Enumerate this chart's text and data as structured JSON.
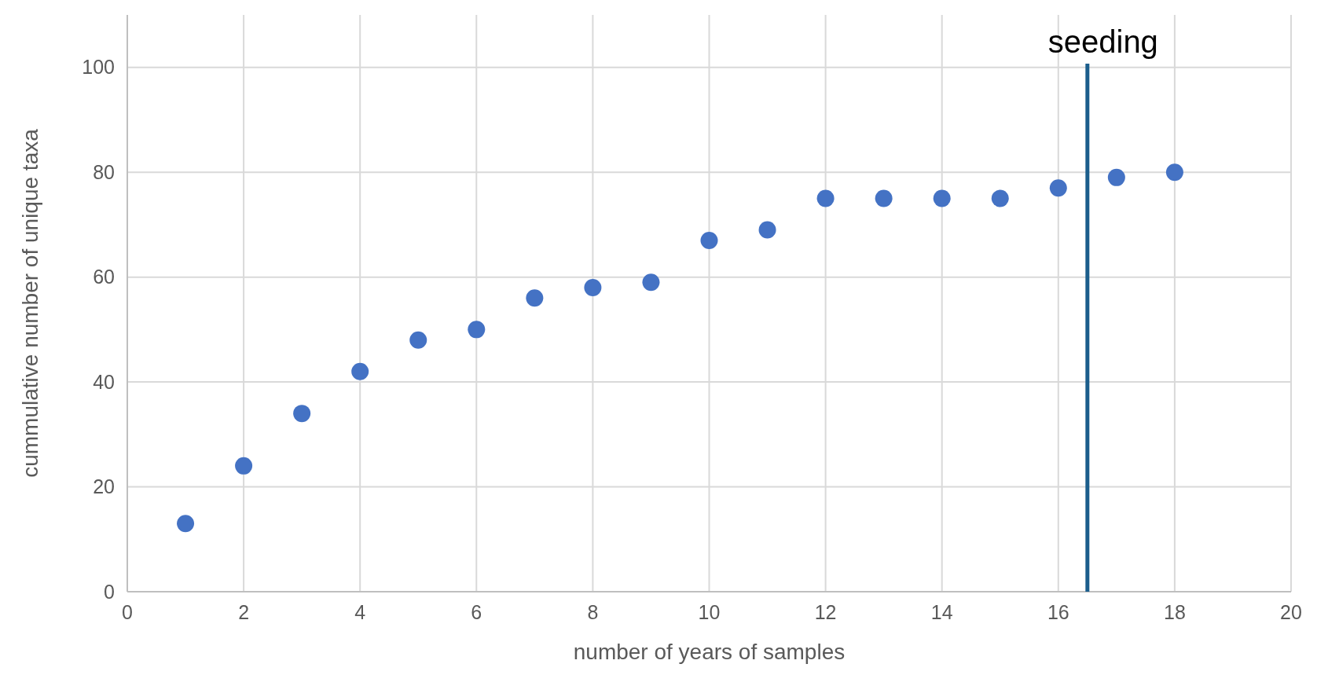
{
  "chart_data": {
    "type": "scatter",
    "xlabel": "number of years of samples",
    "ylabel": "cummulative number of unique taxa",
    "x": [
      1,
      2,
      3,
      4,
      5,
      6,
      7,
      8,
      9,
      10,
      11,
      12,
      13,
      14,
      15,
      16,
      17,
      18
    ],
    "series": [
      {
        "color": "#4472c4",
        "values": [
          13,
          24,
          34,
          42,
          48,
          50,
          56,
          58,
          59,
          67,
          69,
          75,
          75,
          75,
          75,
          77,
          79,
          80
        ]
      }
    ],
    "xlim": [
      0,
      20
    ],
    "xticks": [
      0,
      2,
      4,
      6,
      8,
      10,
      12,
      14,
      16,
      18,
      20
    ],
    "ylim": [
      0,
      110
    ],
    "yticks": [
      0,
      20,
      40,
      60,
      80,
      100
    ],
    "grid": true,
    "marker": "circle",
    "ref_lines": [
      {
        "axis": "x",
        "value": 16.5,
        "label": "seeding",
        "color": "#1b5e8c"
      }
    ]
  }
}
